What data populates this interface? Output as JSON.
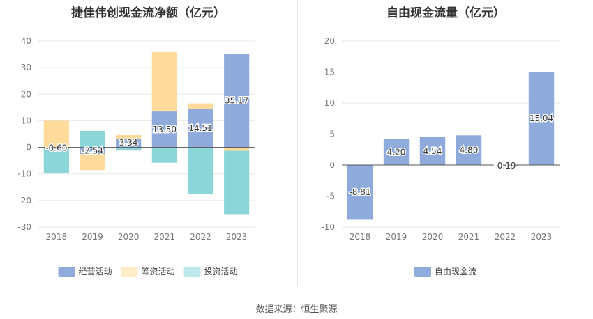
{
  "source_note": "数据来源：恒生聚源",
  "chart_data": [
    {
      "type": "bar",
      "stacked": true,
      "title": "捷佳伟创现金流净额（亿元）",
      "categories": [
        "2018",
        "2019",
        "2020",
        "2021",
        "2022",
        "2023"
      ],
      "ylim": [
        -30,
        40
      ],
      "yticks": [
        -30,
        -20,
        -10,
        0,
        10,
        20,
        30,
        40
      ],
      "grid": true,
      "legend_position": "bottom",
      "series": [
        {
          "name": "经营活动",
          "color": "#8eabdb",
          "values": [
            -0.6,
            -2.54,
            3.34,
            13.5,
            14.51,
            35.17
          ]
        },
        {
          "name": "筹资活动",
          "color": "#fedb9b",
          "values": [
            10.0,
            -6.0,
            1.3,
            22.5,
            2.0,
            -1.3
          ]
        },
        {
          "name": "投资活动",
          "color": "#8ad6d8",
          "values": [
            -9.0,
            6.2,
            -1.2,
            -5.8,
            -17.5,
            -23.8
          ]
        }
      ],
      "data_labels": [
        "-0.60",
        "-2.54",
        "3.34",
        "13.50",
        "14.51",
        "35.17"
      ]
    },
    {
      "type": "bar",
      "title": "自由现金流量（亿元）",
      "categories": [
        "2018",
        "2019",
        "2020",
        "2021",
        "2022",
        "2023"
      ],
      "ylim": [
        -10,
        20
      ],
      "yticks": [
        -10,
        -5,
        0,
        5,
        10,
        15,
        20
      ],
      "grid": true,
      "legend_position": "bottom",
      "series": [
        {
          "name": "自由现金流",
          "color": "#8eabdb",
          "values": [
            -8.81,
            4.2,
            4.54,
            4.8,
            -0.19,
            15.04
          ]
        }
      ],
      "data_labels": [
        "-8.81",
        "4.20",
        "4.54",
        "4.80",
        "-0.19",
        "15.04"
      ]
    }
  ]
}
